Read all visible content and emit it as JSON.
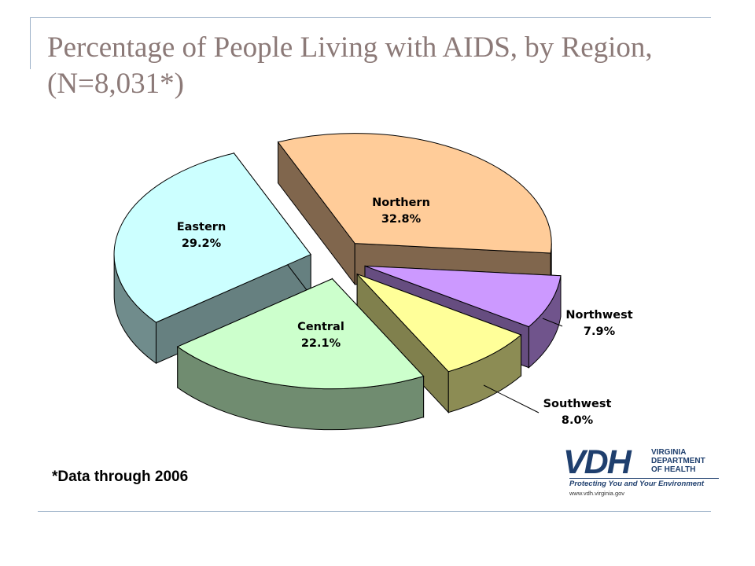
{
  "slide": {
    "title": "Percentage of People Living with AIDS, by Region, (N=8,031*)",
    "footnote": "*Data through 2006"
  },
  "logo": {
    "mark": "VDH",
    "dept_lines": [
      "VIRGINIA",
      "DEPARTMENT",
      "OF HEALTH"
    ],
    "tagline": "Protecting You and Your Environment",
    "url": "www.vdh.virginia.gov"
  },
  "chart_data": {
    "type": "pie",
    "style": "3d-exploded",
    "title": "Percentage of People Living with AIDS, by Region, (N=8,031*)",
    "categories": [
      "Northern",
      "Northwest",
      "Southwest",
      "Central",
      "Eastern"
    ],
    "values": [
      32.8,
      7.9,
      8.0,
      22.1,
      29.2
    ],
    "value_labels": [
      "32.8%",
      "7.9%",
      "8.0%",
      "22.1%",
      "29.2%"
    ],
    "colors": {
      "Northern": "#ffcc99",
      "Northwest": "#cc99ff",
      "Southwest": "#ffff99",
      "Central": "#ccffcc",
      "Eastern": "#ccffff"
    },
    "legend": "none"
  }
}
